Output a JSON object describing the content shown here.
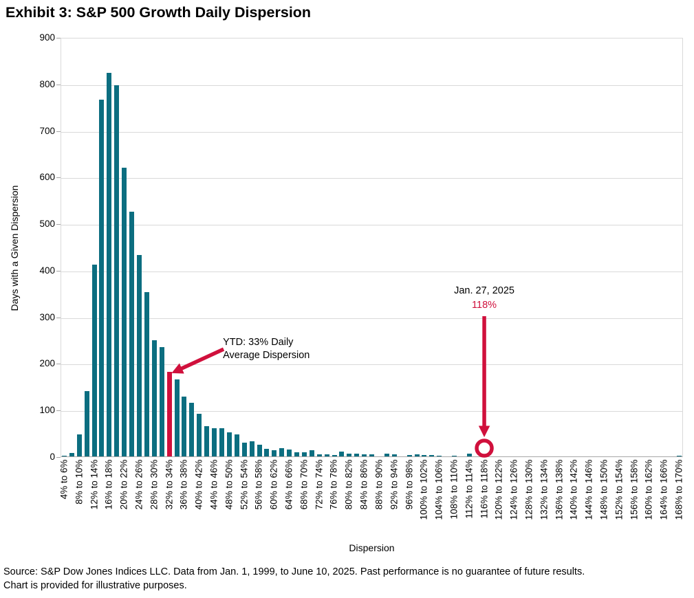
{
  "title": "Exhibit 3: S&P 500 Growth Daily Dispersion",
  "colors": {
    "bar_teal": "#0C6E80",
    "accent_red": "#D0103C",
    "gridline": "#D9D9D9",
    "axis_line": "#A6A6A6",
    "text": "#000000"
  },
  "annotations": {
    "ytd": {
      "line1": "YTD: 33% Daily",
      "line2": "Average Dispersion"
    },
    "jan": {
      "date": "Jan. 27, 2025",
      "value": "118%"
    }
  },
  "source_note": {
    "line1": "Source: S&P Dow Jones Indices LLC. Data from Jan. 1, 1999, to June 10, 2025. Past performance is no guarantee of future results.",
    "line2": "Chart is provided for illustrative purposes."
  },
  "chart_data": {
    "type": "bar",
    "title": "Exhibit 3: S&P 500 Growth Daily Dispersion",
    "xlabel": "Dispersion",
    "ylabel": "Days with a Given Dispersion",
    "ylim": [
      0,
      900
    ],
    "y_ticks": [
      0,
      100,
      200,
      300,
      400,
      500,
      600,
      700,
      800,
      900
    ],
    "grid": "horizontal-light-gray",
    "legend": "none",
    "bucket_width_pct": 2,
    "categories": [
      "4% to 6%",
      "6% to 8%",
      "8% to 10%",
      "10% to 12%",
      "12% to 14%",
      "14% to 16%",
      "16% to 18%",
      "18% to 20%",
      "20% to 22%",
      "22% to 24%",
      "24% to 26%",
      "26% to 28%",
      "28% to 30%",
      "30% to 32%",
      "32% to 34%",
      "34% to 36%",
      "36% to 38%",
      "38% to 40%",
      "40% to 42%",
      "42% to 44%",
      "44% to 46%",
      "46% to 48%",
      "48% to 50%",
      "50% to 52%",
      "52% to 54%",
      "54% to 56%",
      "56% to 58%",
      "58% to 60%",
      "60% to 62%",
      "62% to 64%",
      "64% to 66%",
      "66% to 68%",
      "68% to 70%",
      "70% to 72%",
      "72% to 74%",
      "74% to 76%",
      "76% to 78%",
      "78% to 80%",
      "80% to 82%",
      "82% to 84%",
      "84% to 86%",
      "86% to 88%",
      "88% to 90%",
      "90% to 92%",
      "92% to 94%",
      "94% to 96%",
      "96% to 98%",
      "98% to 100%",
      "100% to 102%",
      "102% to 104%",
      "104% to 106%",
      "106% to 108%",
      "108% to 110%",
      "110% to 112%",
      "112% to 114%",
      "114% to 116%",
      "116% to 118%",
      "118% to 120%",
      "120% to 122%",
      "122% to 124%",
      "124% to 126%",
      "126% to 128%",
      "128% to 130%",
      "130% to 132%",
      "132% to 134%",
      "134% to 136%",
      "136% to 138%",
      "138% to 140%",
      "140% to 142%",
      "142% to 144%",
      "144% to 146%",
      "146% to 148%",
      "148% to 150%",
      "150% to 152%",
      "152% to 154%",
      "154% to 156%",
      "156% to 158%",
      "158% to 160%",
      "160% to 162%",
      "162% to 164%",
      "164% to 166%",
      "166% to 168%",
      "168% to 170%"
    ],
    "values": [
      1,
      7,
      47,
      140,
      411,
      766,
      823,
      797,
      620,
      525,
      433,
      352,
      250,
      234,
      181,
      166,
      129,
      115,
      92,
      65,
      60,
      60,
      51,
      47,
      29,
      32,
      25,
      16,
      14,
      17,
      15,
      9,
      9,
      13,
      4,
      4,
      3,
      10,
      6,
      6,
      4,
      4,
      0,
      6,
      4,
      0,
      3,
      4,
      3,
      3,
      2,
      0,
      2,
      0,
      6,
      0,
      3,
      0,
      0,
      0,
      0,
      0,
      0,
      0,
      0,
      0,
      0,
      0,
      0,
      0,
      0,
      0,
      0,
      0,
      0,
      0,
      0,
      0,
      0,
      0,
      0,
      0,
      2
    ],
    "x_tick_labels": [
      "4% to 6%",
      "8% to 10%",
      "12% to 14%",
      "16% to 18%",
      "20% to 22%",
      "24% to 26%",
      "28% to 30%",
      "32% to 34%",
      "36% to 38%",
      "40% to 42%",
      "44% to 46%",
      "48% to 50%",
      "52% to 54%",
      "56% to 58%",
      "60% to 62%",
      "64% to 66%",
      "68% to 70%",
      "72% to 74%",
      "76% to 78%",
      "80% to 82%",
      "84% to 86%",
      "88% to 90%",
      "92% to 94%",
      "96% to 98%",
      "100% to 102%",
      "104% to 106%",
      "108% to 110%",
      "112% to 114%",
      "116% to 118%",
      "120% to 122%",
      "124% to 126%",
      "128% to 130%",
      "132% to 134%",
      "136% to 138%",
      "140% to 142%",
      "144% to 146%",
      "148% to 150%",
      "152% to 154%",
      "156% to 158%",
      "160% to 162%",
      "164% to 166%",
      "168% to 170%"
    ],
    "highlighted_bar": {
      "index": 14,
      "category": "32% to 34%",
      "value": 181,
      "annotation": "YTD: 33% Daily Average Dispersion"
    },
    "circled_bar": {
      "index": 56,
      "category": "116% to 118%",
      "value": 3,
      "annotation": "Jan. 27, 2025 118%"
    }
  }
}
